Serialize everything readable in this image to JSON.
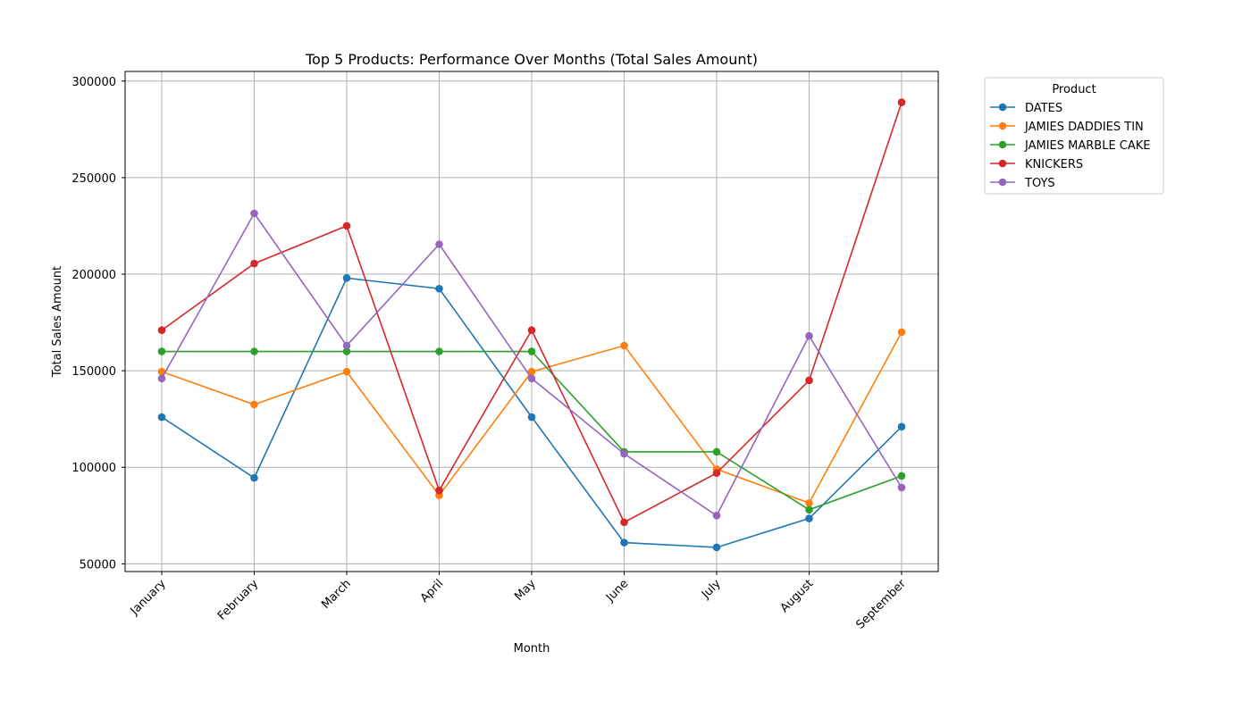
{
  "chart_data": {
    "type": "line",
    "title": "Top 5 Products: Performance Over Months (Total Sales Amount)",
    "xlabel": "Month",
    "ylabel": "Total Sales Amount",
    "categories": [
      "January",
      "February",
      "March",
      "April",
      "May",
      "June",
      "July",
      "August",
      "September"
    ],
    "ylim": [
      46000,
      305000
    ],
    "yticks": [
      50000,
      100000,
      150000,
      200000,
      250000,
      300000
    ],
    "ytick_labels": [
      "50000",
      "100000",
      "150000",
      "200000",
      "250000",
      "300000"
    ],
    "grid": true,
    "legend": {
      "title": "Product",
      "placement": "outside-right-top"
    },
    "series": [
      {
        "name": "DATES",
        "color": "#1f77b4",
        "values": [
          126000,
          94500,
          198000,
          192500,
          126000,
          61000,
          58500,
          73500,
          121000
        ]
      },
      {
        "name": "JAMIES DADDIES TIN",
        "color": "#ff7f0e",
        "values": [
          149500,
          132500,
          149500,
          85500,
          149500,
          163000,
          99000,
          81500,
          170000
        ]
      },
      {
        "name": "JAMIES MARBLE CAKE",
        "color": "#2ca02c",
        "values": [
          160000,
          160000,
          160000,
          160000,
          160000,
          108000,
          108000,
          78000,
          95500
        ]
      },
      {
        "name": "KNICKERS",
        "color": "#d62728",
        "values": [
          171000,
          205500,
          225000,
          88000,
          171000,
          71500,
          97000,
          145000,
          289000
        ]
      },
      {
        "name": "TOYS",
        "color": "#9467bd",
        "values": [
          146000,
          231500,
          163000,
          215500,
          146000,
          107000,
          75000,
          168000,
          89500
        ]
      }
    ]
  }
}
